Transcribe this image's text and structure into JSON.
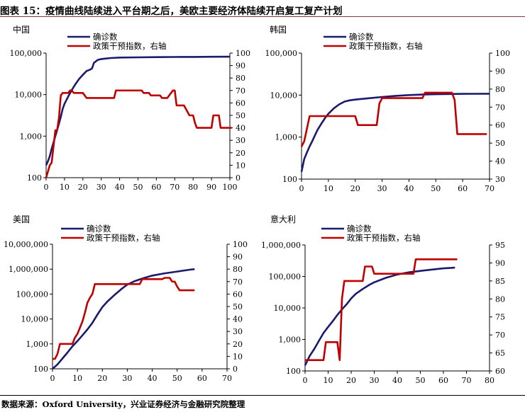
{
  "figure": {
    "title": "图表 15：疫情曲线陆续进入平台期之后，美欧主要经济体陆续开启复工复产计划",
    "source": "数据来源：Oxford University，兴业证券经济与金融研究院整理"
  },
  "colors": {
    "cases": "#1a1a6e",
    "policy": "#c00000",
    "axis": "#000000"
  },
  "chart_data": [
    {
      "type": "line",
      "title": "中国",
      "legend": [
        "确诊数",
        "政策干预指数，右轴"
      ],
      "x_ticks": [
        0,
        10,
        20,
        30,
        40,
        50,
        60,
        70,
        80,
        90,
        100
      ],
      "xlim": [
        0,
        100
      ],
      "left_axis": {
        "scale": "log",
        "ylim": [
          100,
          100000
        ],
        "ticks": [
          100,
          1000,
          10000,
          100000
        ],
        "tick_labels": [
          "100",
          "1,000",
          "10,000",
          "100,000"
        ]
      },
      "right_axis": {
        "ylim": [
          0,
          100
        ],
        "ticks": [
          0,
          10,
          20,
          30,
          40,
          50,
          60,
          70,
          80,
          90,
          100
        ],
        "tick_labels": [
          "0",
          "10",
          "20",
          "30",
          "40",
          "50",
          "60",
          "70",
          "80",
          "90",
          "100"
        ]
      },
      "series": [
        {
          "name": "确诊数",
          "axis": "left",
          "x": [
            0,
            1,
            2,
            3,
            4,
            5,
            6,
            7,
            8,
            9,
            10,
            12,
            14,
            16,
            18,
            20,
            22,
            24,
            25,
            26,
            28,
            30,
            35,
            40,
            50,
            60,
            70,
            80,
            90,
            100
          ],
          "y": [
            200,
            250,
            330,
            500,
            700,
            1000,
            1400,
            2000,
            2900,
            4500,
            6000,
            9000,
            13000,
            18000,
            24000,
            30000,
            37000,
            40000,
            43000,
            58000,
            68000,
            72000,
            76000,
            78000,
            79000,
            80000,
            80500,
            81000,
            81500,
            81800
          ]
        },
        {
          "name": "政策干预指数，右轴",
          "axis": "right",
          "x": [
            0,
            1,
            2,
            3,
            4,
            5,
            6,
            7,
            8,
            9,
            10,
            12,
            13,
            14,
            15,
            16,
            20,
            21,
            22,
            37,
            38,
            52,
            53,
            56,
            57,
            62,
            63,
            64,
            66,
            67,
            68,
            69,
            70,
            71,
            72,
            74,
            75,
            78,
            79,
            80,
            81,
            82,
            90,
            91,
            92,
            94,
            95,
            101
          ],
          "y": [
            0,
            5,
            10,
            12,
            25,
            38,
            38,
            48,
            66,
            68,
            68,
            68,
            70,
            70,
            68,
            68,
            68,
            66,
            64,
            64,
            70,
            70,
            68,
            68,
            66,
            66,
            64,
            64,
            64,
            66,
            68,
            70,
            70,
            58,
            58,
            58,
            58,
            50,
            50,
            50,
            44,
            40,
            40,
            50,
            50,
            50,
            40,
            40
          ]
        }
      ]
    },
    {
      "type": "line",
      "title": "韩国",
      "legend": [
        "确诊数",
        "政策干预指数，右轴"
      ],
      "x_ticks": [
        0,
        10,
        20,
        30,
        40,
        50,
        60,
        70
      ],
      "xlim": [
        0,
        70
      ],
      "left_axis": {
        "scale": "log",
        "ylim": [
          100,
          100000
        ],
        "ticks": [
          100,
          1000,
          10000,
          100000
        ],
        "tick_labels": [
          "100",
          "1,000",
          "10,000",
          "100,000"
        ]
      },
      "right_axis": {
        "ylim": [
          30,
          100
        ],
        "ticks": [
          30,
          40,
          50,
          60,
          70,
          80,
          90,
          100
        ],
        "tick_labels": [
          "30",
          "40",
          "50",
          "60",
          "70",
          "80",
          "90",
          "100"
        ]
      },
      "series": [
        {
          "name": "确诊数",
          "axis": "left",
          "x": [
            0,
            1,
            2,
            3,
            4,
            5,
            6,
            7,
            8,
            9,
            10,
            12,
            14,
            16,
            18,
            20,
            25,
            30,
            35,
            40,
            45,
            50,
            55,
            60,
            65,
            70
          ],
          "y": [
            150,
            300,
            430,
            600,
            800,
            1100,
            1500,
            1900,
            2400,
            3000,
            3600,
            4800,
            6000,
            7000,
            7500,
            7800,
            8400,
            9000,
            9600,
            10000,
            10300,
            10500,
            10600,
            10700,
            10750,
            10800
          ]
        },
        {
          "name": "政策干预指数，右轴",
          "axis": "right",
          "x": [
            0,
            1,
            2,
            3,
            20,
            21,
            28,
            29,
            30,
            45,
            46,
            56,
            57,
            58,
            69
          ],
          "y": [
            48,
            51,
            58,
            65,
            65,
            60,
            60,
            72,
            75,
            75,
            78,
            78,
            74,
            55,
            55
          ]
        }
      ]
    },
    {
      "type": "line",
      "title": "美国",
      "legend": [
        "确诊数",
        "政策干预指数，右轴"
      ],
      "x_ticks": [
        0,
        10,
        20,
        30,
        40,
        50,
        60,
        70
      ],
      "xlim": [
        0,
        70
      ],
      "left_axis": {
        "scale": "log",
        "ylim": [
          100,
          10000000
        ],
        "ticks": [
          100,
          1000,
          10000,
          100000,
          1000000,
          10000000
        ],
        "tick_labels": [
          "100",
          "1,000",
          "10,000",
          "100,000",
          "1,000,000",
          "10,000,000"
        ]
      },
      "right_axis": {
        "ylim": [
          0,
          100
        ],
        "ticks": [
          0,
          10,
          20,
          30,
          40,
          50,
          60,
          70,
          80,
          90,
          100
        ],
        "tick_labels": [
          "0",
          "10",
          "20",
          "30",
          "40",
          "50",
          "60",
          "70",
          "80",
          "90",
          "100"
        ]
      },
      "series": [
        {
          "name": "确诊数",
          "axis": "left",
          "x": [
            0,
            2,
            4,
            6,
            8,
            10,
            12,
            14,
            16,
            18,
            20,
            22,
            25,
            28,
            30,
            33,
            36,
            40,
            45,
            50,
            55,
            57
          ],
          "y": [
            100,
            150,
            260,
            450,
            800,
            1300,
            2200,
            3800,
            7000,
            15000,
            30000,
            50000,
            95000,
            170000,
            240000,
            330000,
            420000,
            550000,
            680000,
            800000,
            950000,
            1000000
          ]
        },
        {
          "name": "政策干预指数，右轴",
          "axis": "right",
          "x": [
            0,
            1,
            2,
            3,
            8,
            9,
            10,
            11,
            12,
            13,
            14,
            15,
            16,
            17,
            35,
            36,
            44,
            45,
            47,
            48,
            49,
            50,
            51,
            52,
            57
          ],
          "y": [
            8,
            8,
            12,
            20,
            20,
            25,
            28,
            33,
            38,
            45,
            53,
            57,
            60,
            68,
            68,
            72,
            72,
            73,
            73,
            70,
            70,
            66,
            63,
            63,
            63
          ]
        }
      ]
    },
    {
      "type": "line",
      "title": "意大利",
      "legend": [
        "确诊数",
        "政策干预指数，右轴"
      ],
      "x_ticks": [
        0,
        10,
        20,
        30,
        40,
        50,
        60,
        70,
        80
      ],
      "xlim": [
        0,
        80
      ],
      "left_axis": {
        "scale": "log",
        "ylim": [
          100,
          1000000
        ],
        "ticks": [
          100,
          1000,
          10000,
          100000,
          1000000
        ],
        "tick_labels": [
          "100",
          "1,000",
          "10,000",
          "100,000",
          "1,000,000"
        ]
      },
      "right_axis": {
        "ylim": [
          60,
          95
        ],
        "ticks": [
          60,
          65,
          70,
          75,
          80,
          85,
          90,
          95
        ],
        "tick_labels": [
          "60",
          "65",
          "70",
          "75",
          "80",
          "85",
          "90",
          "95"
        ]
      },
      "series": [
        {
          "name": "确诊数",
          "axis": "left",
          "x": [
            0,
            2,
            4,
            6,
            8,
            10,
            12,
            14,
            16,
            18,
            20,
            22,
            25,
            28,
            30,
            35,
            40,
            45,
            50,
            55,
            60,
            65
          ],
          "y": [
            150,
            300,
            500,
            900,
            1600,
            2500,
            3800,
            6000,
            9000,
            13000,
            20000,
            28000,
            40000,
            55000,
            65000,
            90000,
            115000,
            135000,
            150000,
            165000,
            180000,
            190000
          ]
        },
        {
          "name": "政策干预指数，右轴",
          "axis": "right",
          "x": [
            0,
            8,
            9,
            14,
            15,
            16,
            17,
            25,
            26,
            29,
            30,
            47,
            48,
            66
          ],
          "y": [
            63,
            63,
            68,
            68,
            63,
            80,
            85,
            85,
            89,
            89,
            87,
            87,
            91,
            91
          ]
        }
      ]
    }
  ]
}
